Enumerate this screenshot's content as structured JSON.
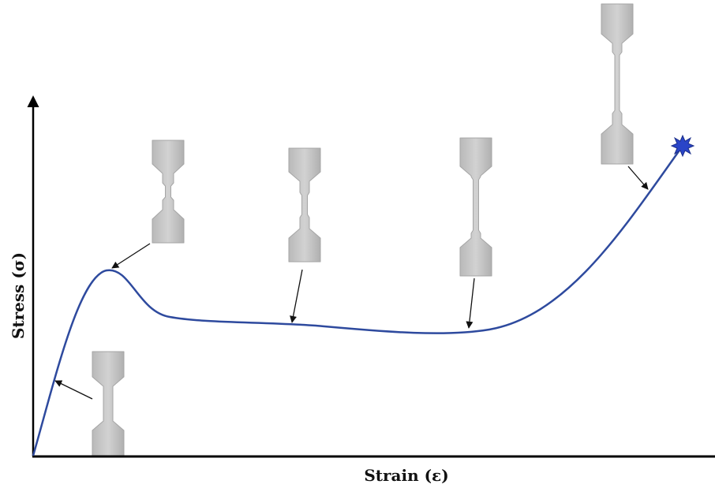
{
  "axes": {
    "x_label": "Strain (ε)",
    "y_label": "Stress (σ)"
  }
}
